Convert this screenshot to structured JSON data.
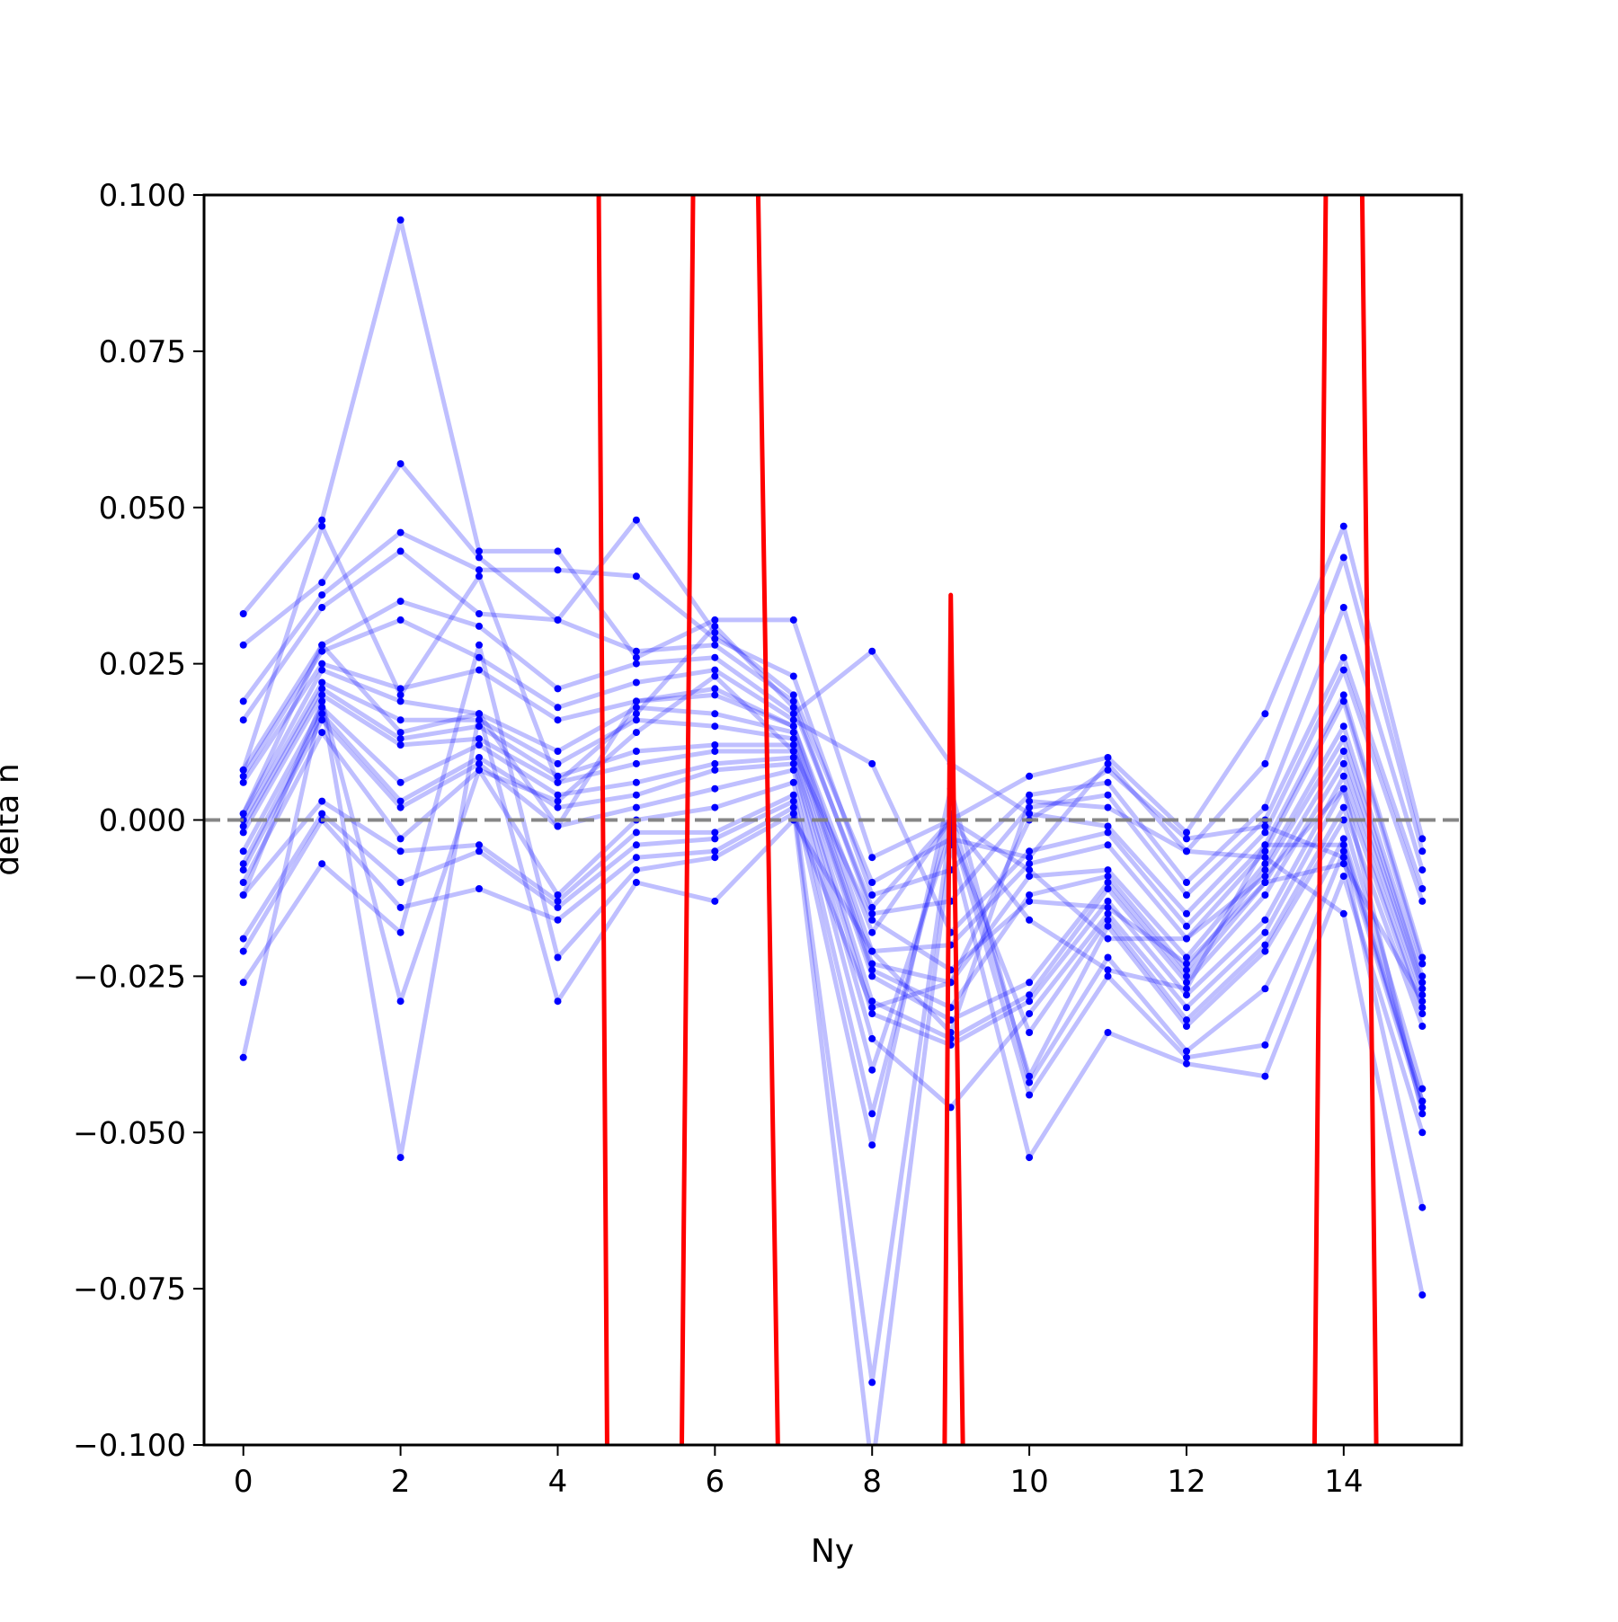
{
  "chart_data": {
    "type": "line",
    "title": "",
    "xlabel": "Ny",
    "ylabel": "delta n",
    "xlim": [
      -0.5,
      15.5
    ],
    "ylim": [
      -0.1,
      0.1
    ],
    "x_ticks": [
      0,
      2,
      4,
      6,
      8,
      10,
      12,
      14
    ],
    "x_tick_labels": [
      "0",
      "2",
      "4",
      "6",
      "8",
      "10",
      "12",
      "14"
    ],
    "y_ticks": [
      -0.1,
      -0.075,
      -0.05,
      -0.025,
      0.0,
      0.025,
      0.05,
      0.075,
      0.1
    ],
    "y_tick_labels": [
      "−0.100",
      "−0.075",
      "−0.050",
      "−0.025",
      "0.000",
      "0.025",
      "0.050",
      "0.075",
      "0.100"
    ],
    "grid": false,
    "reference_line": {
      "y": 0.0,
      "style": "dashed",
      "color": "#808080"
    },
    "colors": {
      "trials": "#0000ff",
      "highlight": "#ff0000",
      "reference": "#808080"
    },
    "x": [
      0,
      1,
      2,
      3,
      4,
      5,
      6,
      7,
      8,
      9,
      10,
      11,
      12,
      13,
      14,
      15
    ],
    "series": [
      {
        "values": [
          0.033,
          0.048,
          0.096,
          0.043,
          0.043,
          0.026,
          0.032,
          0.032,
          -0.006,
          0.0,
          0.007,
          0.01,
          -0.002,
          0.017,
          0.047,
          -0.003
        ]
      },
      {
        "values": [
          0.028,
          0.038,
          0.057,
          0.042,
          0.032,
          0.048,
          0.03,
          0.02,
          -0.01,
          -0.003,
          -0.006,
          0.009,
          -0.005,
          0.009,
          0.042,
          -0.005
        ]
      },
      {
        "values": [
          0.019,
          0.036,
          0.046,
          0.04,
          0.04,
          0.039,
          0.029,
          0.023,
          -0.012,
          -0.008,
          0.004,
          0.006,
          -0.01,
          0.002,
          0.034,
          -0.008
        ]
      },
      {
        "values": [
          0.016,
          0.034,
          0.043,
          0.033,
          0.032,
          0.027,
          0.028,
          0.019,
          -0.015,
          -0.013,
          0.002,
          0.004,
          -0.012,
          0.0,
          0.026,
          -0.011
        ]
      },
      {
        "values": [
          0.008,
          0.028,
          0.035,
          0.031,
          0.021,
          0.025,
          0.026,
          0.017,
          0.027,
          0.009,
          0.001,
          -0.001,
          -0.015,
          -0.002,
          0.024,
          -0.013
        ]
      },
      {
        "values": [
          0.007,
          0.027,
          0.032,
          0.026,
          0.018,
          0.022,
          0.024,
          0.016,
          0.009,
          -0.018,
          -0.005,
          -0.002,
          -0.017,
          -0.004,
          0.02,
          -0.022
        ]
      },
      {
        "values": [
          0.006,
          0.025,
          0.021,
          0.024,
          0.016,
          0.019,
          0.02,
          0.015,
          -0.021,
          -0.02,
          -0.007,
          -0.004,
          -0.019,
          -0.005,
          0.019,
          -0.023
        ]
      },
      {
        "values": [
          0.001,
          0.024,
          0.019,
          0.017,
          0.011,
          0.018,
          0.017,
          0.014,
          -0.023,
          -0.026,
          -0.009,
          -0.008,
          -0.022,
          -0.007,
          0.015,
          -0.025
        ]
      },
      {
        "values": [
          0.0,
          0.022,
          0.016,
          0.016,
          0.009,
          0.016,
          0.015,
          0.013,
          -0.024,
          -0.03,
          -0.012,
          -0.009,
          -0.024,
          -0.008,
          0.013,
          -0.026
        ]
      },
      {
        "values": [
          -0.001,
          0.021,
          0.013,
          0.015,
          0.007,
          0.011,
          0.012,
          0.012,
          -0.025,
          -0.032,
          -0.026,
          -0.01,
          -0.025,
          -0.01,
          0.011,
          -0.027
        ]
      },
      {
        "values": [
          -0.002,
          0.02,
          0.012,
          0.013,
          0.006,
          0.009,
          0.011,
          0.011,
          -0.029,
          -0.035,
          -0.028,
          -0.011,
          -0.026,
          -0.012,
          0.009,
          -0.028
        ]
      },
      {
        "values": [
          -0.005,
          0.018,
          0.006,
          0.012,
          0.004,
          0.006,
          0.009,
          0.01,
          -0.031,
          -0.036,
          -0.029,
          -0.013,
          -0.028,
          -0.016,
          0.007,
          -0.03
        ]
      },
      {
        "values": [
          -0.007,
          0.017,
          0.003,
          0.01,
          0.002,
          0.004,
          0.008,
          0.009,
          -0.035,
          -0.046,
          -0.031,
          -0.015,
          -0.03,
          -0.018,
          0.005,
          -0.031
        ]
      },
      {
        "values": [
          -0.008,
          0.016,
          0.002,
          0.009,
          -0.001,
          0.002,
          0.005,
          0.008,
          -0.04,
          -0.002,
          -0.034,
          -0.016,
          -0.032,
          -0.02,
          0.002,
          -0.033
        ]
      },
      {
        "values": [
          -0.01,
          0.014,
          -0.003,
          0.008,
          -0.012,
          0.0,
          0.002,
          0.006,
          -0.047,
          0.001,
          -0.041,
          -0.017,
          -0.033,
          -0.021,
          0.0,
          -0.043
        ]
      },
      {
        "values": [
          -0.012,
          0.003,
          -0.005,
          -0.004,
          -0.013,
          -0.002,
          -0.002,
          0.004,
          -0.052,
          0.005,
          -0.042,
          -0.022,
          -0.037,
          -0.027,
          -0.003,
          -0.045
        ]
      },
      {
        "values": [
          -0.019,
          0.001,
          -0.01,
          -0.005,
          -0.014,
          -0.004,
          -0.003,
          0.003,
          -0.09,
          -0.001,
          -0.044,
          -0.025,
          -0.038,
          -0.036,
          -0.005,
          -0.046
        ]
      },
      {
        "values": [
          -0.021,
          0.0,
          -0.014,
          -0.011,
          -0.016,
          -0.006,
          -0.005,
          0.002,
          -0.104,
          -0.004,
          -0.054,
          -0.034,
          -0.039,
          -0.041,
          -0.009,
          -0.05
        ]
      },
      {
        "values": [
          -0.026,
          -0.007,
          -0.018,
          0.028,
          -0.022,
          -0.008,
          -0.006,
          0.001,
          -0.03,
          -0.026,
          0.0,
          0.008,
          -0.003,
          -0.001,
          -0.006,
          -0.062
        ]
      },
      {
        "values": [
          -0.038,
          0.019,
          -0.054,
          0.017,
          -0.029,
          -0.01,
          -0.013,
          0.0,
          -0.021,
          -0.034,
          0.003,
          0.002,
          -0.005,
          -0.006,
          -0.015,
          -0.076
        ]
      },
      {
        "values": [
          0.008,
          0.047,
          0.02,
          0.039,
          0.006,
          0.017,
          0.031,
          0.018,
          -0.014,
          0.0,
          -0.008,
          -0.019,
          -0.019,
          -0.009,
          0.005,
          -0.047
        ]
      },
      {
        "values": [
          -0.012,
          0.019,
          -0.029,
          0.008,
          0.003,
          0.014,
          0.023,
          0.011,
          -0.016,
          -0.024,
          -0.013,
          -0.014,
          -0.023,
          -0.01,
          -0.007,
          -0.029
        ]
      },
      {
        "values": [
          0.001,
          0.028,
          0.014,
          0.017,
          -0.001,
          0.019,
          0.021,
          0.015,
          -0.018,
          0.0,
          -0.016,
          -0.024,
          -0.027,
          -0.004,
          -0.004,
          -0.045
        ]
      }
    ],
    "highlight": {
      "color": "#ff0000",
      "points": [
        [
          4.5,
          0.14
        ],
        [
          4.65,
          -0.14
        ],
        [
          5.55,
          -0.14
        ],
        [
          5.75,
          0.14
        ],
        [
          6.5,
          0.14
        ],
        [
          6.85,
          -0.14
        ],
        [
          8.9,
          -0.14
        ],
        [
          9.0,
          0.036
        ],
        [
          9.2,
          -0.14
        ],
        [
          13.6,
          -0.14
        ],
        [
          13.8,
          0.14
        ],
        [
          14.2,
          0.14
        ],
        [
          14.45,
          -0.14
        ]
      ]
    }
  }
}
